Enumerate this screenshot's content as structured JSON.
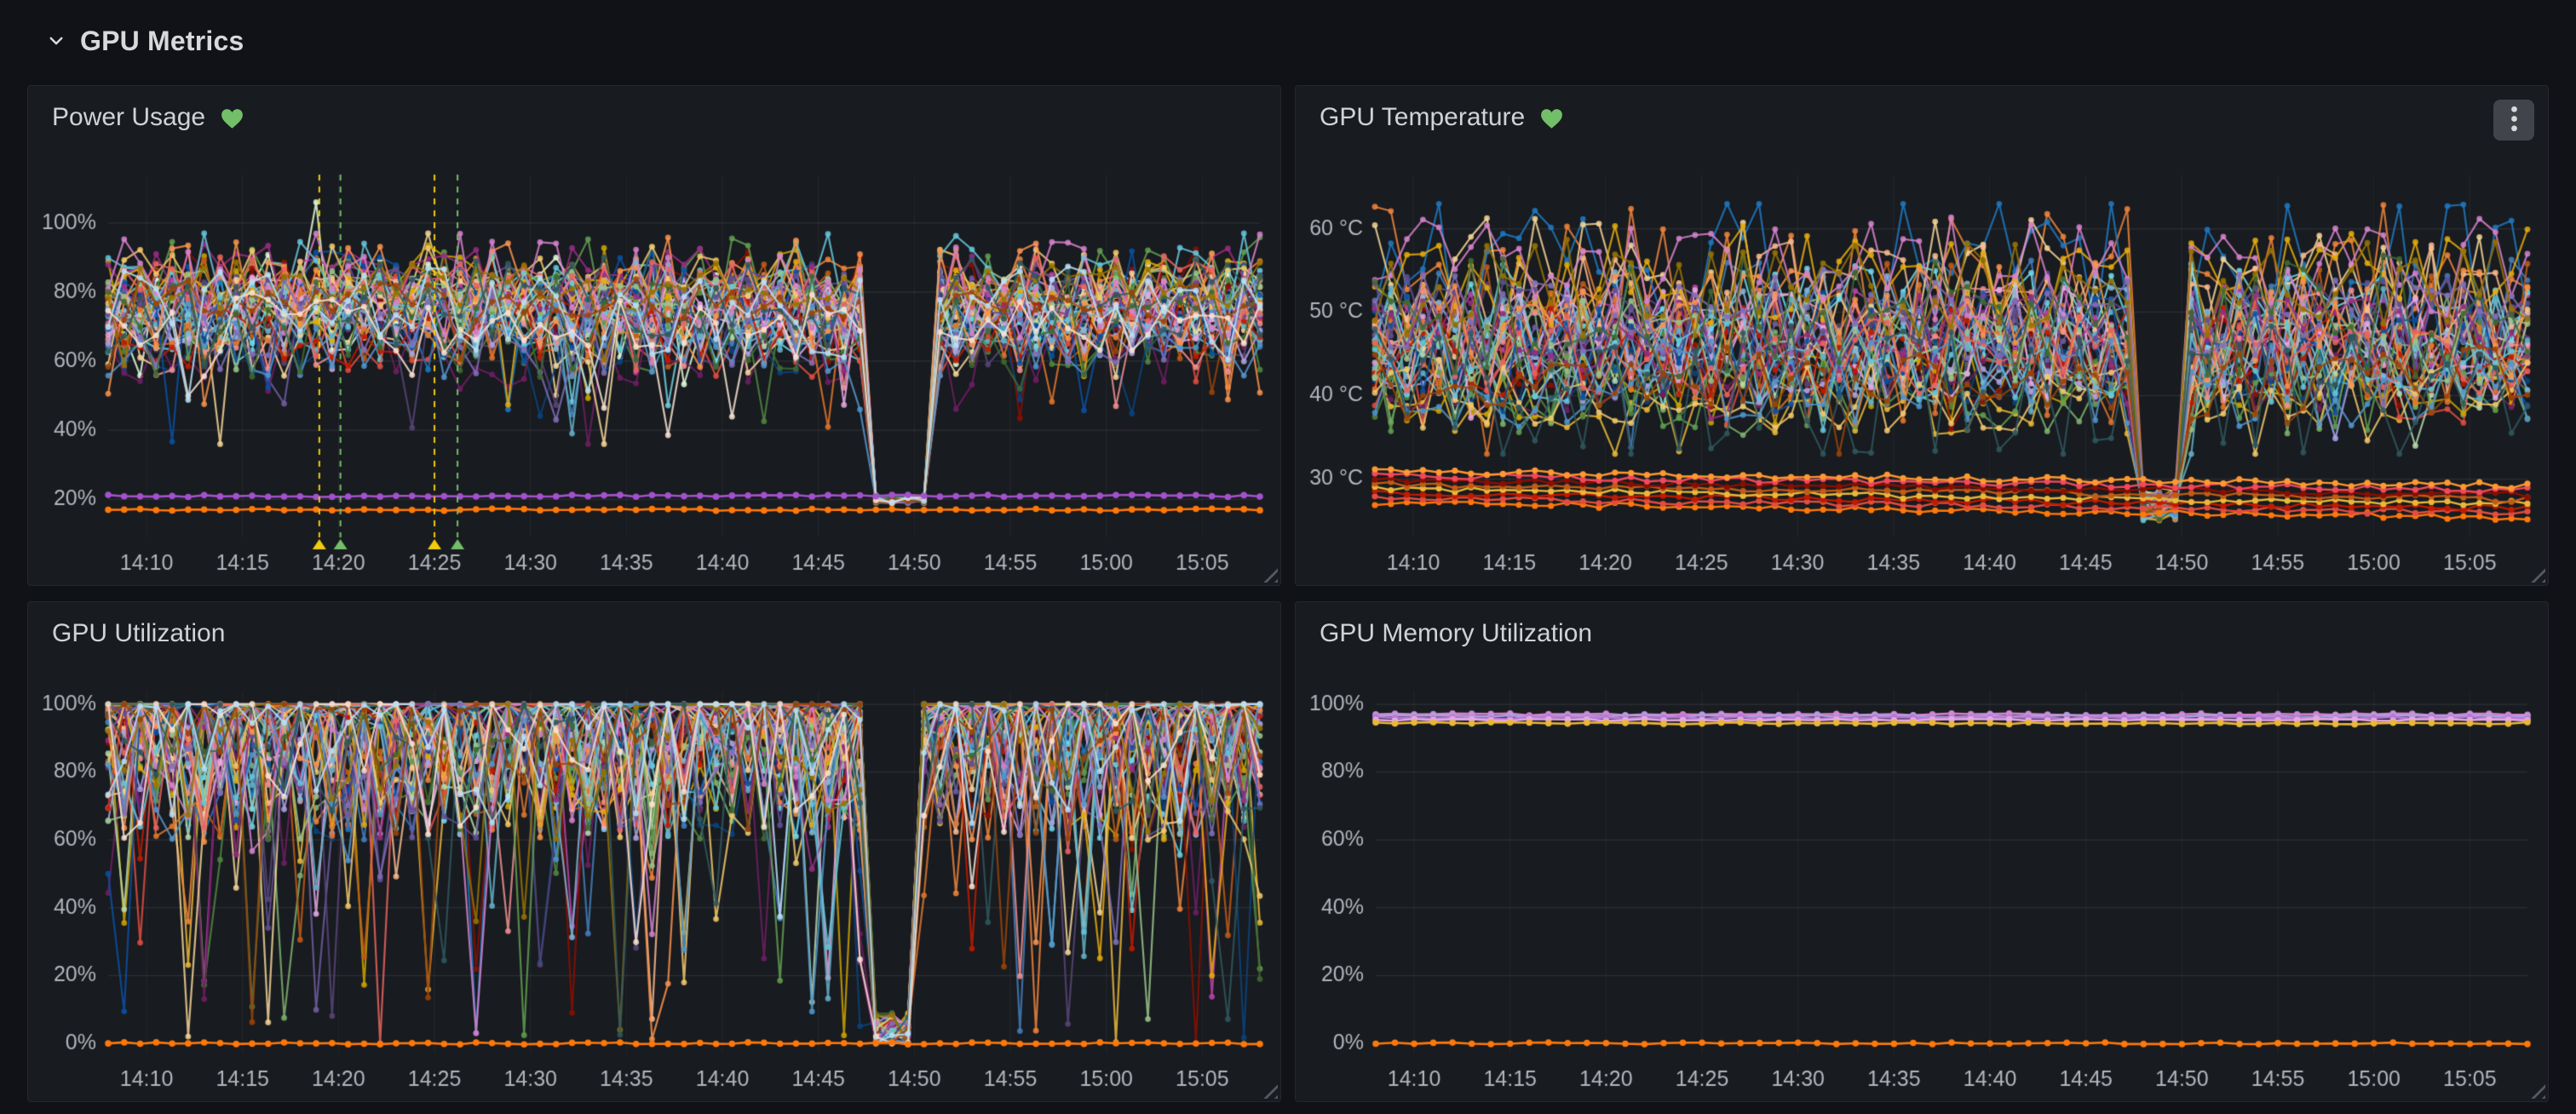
{
  "page": {
    "background": "#111217",
    "panel_background": "#181b1f",
    "panel_border": "#25272e"
  },
  "header": {
    "title": "GPU Metrics"
  },
  "panels": [
    {
      "title": "Power Usage",
      "health": "healthy",
      "menu": false
    },
    {
      "title": "GPU Temperature",
      "health": "healthy",
      "menu": true
    },
    {
      "title": "GPU Utilization",
      "health": null,
      "menu": false
    },
    {
      "title": "GPU Memory Utilization",
      "health": null,
      "menu": false
    }
  ],
  "colors": {
    "healthy_heart": "#73bf69",
    "axis_label": "#b3b6bc",
    "grid_line": "rgba(204,204,220,0.10)",
    "grid_line_vertical": "rgba(204,204,220,0.055)",
    "annotation_yellow": "#f2cc0c",
    "annotation_green": "#73bf69",
    "series_palette": [
      "#7EB26D",
      "#EAB839",
      "#6ED0E0",
      "#EF843C",
      "#E24D42",
      "#1F78C1",
      "#BA43A9",
      "#705DA0",
      "#508642",
      "#CCA300",
      "#447EBC",
      "#C15C17",
      "#890F02",
      "#0A437C",
      "#6D1F62",
      "#584477",
      "#B7DBAB",
      "#F4D598",
      "#70DBED",
      "#F9BA8F",
      "#F29191",
      "#82B5D8",
      "#E5A8E2",
      "#AEA2E0",
      "#629E51",
      "#E5AC0E",
      "#64B0C8",
      "#E0752D",
      "#BF1B00",
      "#0A50A1",
      "#962D82",
      "#614D93",
      "#9AC48A",
      "#F2C96D",
      "#65C5DB",
      "#F9934E",
      "#EA6460",
      "#5195CE",
      "#D683CE",
      "#806EB7",
      "#3F6833",
      "#967302",
      "#2F575E",
      "#99440A",
      "#F9E2D2",
      "#BADFF4"
    ]
  },
  "chart_data": [
    {
      "id": "power",
      "type": "line",
      "title": "Power Usage",
      "legend": "hidden",
      "xlabel": "",
      "ylabel": "",
      "x_domain_minutes": [
        0,
        60
      ],
      "x_start_time": "14:08",
      "points": 73,
      "x_ticks": [
        {
          "m": 2,
          "label": "14:10"
        },
        {
          "m": 7,
          "label": "14:15"
        },
        {
          "m": 12,
          "label": "14:20"
        },
        {
          "m": 17,
          "label": "14:25"
        },
        {
          "m": 22,
          "label": "14:30"
        },
        {
          "m": 27,
          "label": "14:35"
        },
        {
          "m": 32,
          "label": "14:40"
        },
        {
          "m": 37,
          "label": "14:45"
        },
        {
          "m": 42,
          "label": "14:50"
        },
        {
          "m": 47,
          "label": "14:55"
        },
        {
          "m": 52,
          "label": "15:00"
        },
        {
          "m": 57,
          "label": "15:05"
        }
      ],
      "y_ticks": [
        {
          "v": 20,
          "label": "20%"
        },
        {
          "v": 40,
          "label": "40%"
        },
        {
          "v": 60,
          "label": "60%"
        },
        {
          "v": 80,
          "label": "80%"
        },
        {
          "v": 100,
          "label": "100%"
        }
      ],
      "ylim": [
        9,
        114
      ],
      "gen": "band",
      "noisy": {
        "count": 46,
        "center_min": 66,
        "center_max": 84,
        "amp_min": 4,
        "amp_max": 11,
        "clamp": [
          36,
          97
        ],
        "drop_chance": 0.035,
        "drop_min": 12,
        "drop_max": 30
      },
      "dip": {
        "from": 39.2,
        "to": 42.6,
        "value": 20,
        "noise": 1.2
      },
      "spikes": [
        {
          "minute": 11,
          "value": 106,
          "series": 0,
          "color": "#e0f9d7"
        },
        {
          "minute": 17,
          "value": 97,
          "series": 1,
          "color": "#f4d598"
        }
      ],
      "flat_lines": [
        {
          "value": 21,
          "color": "#a352cc"
        },
        {
          "value": 17,
          "color": "#ff780a"
        }
      ],
      "annotations": {
        "vlines": [
          {
            "minute": 11,
            "color": "#f2cc0c"
          },
          {
            "minute": 12.1,
            "color": "#73bf69"
          },
          {
            "minute": 17,
            "color": "#f2cc0c"
          },
          {
            "minute": 18.2,
            "color": "#73bf69"
          }
        ]
      }
    },
    {
      "id": "temp",
      "type": "line",
      "title": "GPU Temperature",
      "legend": "hidden",
      "xlabel": "",
      "ylabel": "",
      "x_domain_minutes": [
        0,
        60
      ],
      "x_start_time": "14:08",
      "points": 73,
      "x_ticks": [
        {
          "m": 2,
          "label": "14:10"
        },
        {
          "m": 7,
          "label": "14:15"
        },
        {
          "m": 12,
          "label": "14:20"
        },
        {
          "m": 17,
          "label": "14:25"
        },
        {
          "m": 22,
          "label": "14:30"
        },
        {
          "m": 27,
          "label": "14:35"
        },
        {
          "m": 32,
          "label": "14:40"
        },
        {
          "m": 37,
          "label": "14:45"
        },
        {
          "m": 42,
          "label": "14:50"
        },
        {
          "m": 47,
          "label": "14:55"
        },
        {
          "m": 52,
          "label": "15:00"
        },
        {
          "m": 57,
          "label": "15:05"
        }
      ],
      "y_ticks": [
        {
          "v": 30,
          "label": "30 °C"
        },
        {
          "v": 40,
          "label": "40 °C"
        },
        {
          "v": 50,
          "label": "50 °C"
        },
        {
          "v": 60,
          "label": "60 °C"
        }
      ],
      "ylim": [
        23,
        66.5
      ],
      "gen": "band",
      "noisy": {
        "count": 44,
        "center_min": 40,
        "center_max": 56,
        "amp_min": 2.5,
        "amp_max": 6,
        "clamp": [
          33,
          63
        ],
        "drop_chance": 0.02,
        "drop_min": 4,
        "drop_max": 9
      },
      "dip": {
        "from": 39.2,
        "to": 42.4,
        "value": 27,
        "noise": 2
      },
      "bottom_group": {
        "colors": [
          "#ff780a",
          "#e24d42",
          "#bf1b00",
          "#eab839",
          "#c15c17",
          "#890f02",
          "#f2495c",
          "#ff9830"
        ],
        "base_min": 27.2,
        "base_max": 31,
        "drift": -1.8,
        "noise": 0.35
      }
    },
    {
      "id": "util",
      "type": "line",
      "title": "GPU Utilization",
      "legend": "hidden",
      "xlabel": "",
      "ylabel": "",
      "x_domain_minutes": [
        0,
        60
      ],
      "x_start_time": "14:08",
      "points": 73,
      "x_ticks": [
        {
          "m": 2,
          "label": "14:10"
        },
        {
          "m": 7,
          "label": "14:15"
        },
        {
          "m": 12,
          "label": "14:20"
        },
        {
          "m": 17,
          "label": "14:25"
        },
        {
          "m": 22,
          "label": "14:30"
        },
        {
          "m": 27,
          "label": "14:35"
        },
        {
          "m": 32,
          "label": "14:40"
        },
        {
          "m": 37,
          "label": "14:45"
        },
        {
          "m": 42,
          "label": "14:50"
        },
        {
          "m": 47,
          "label": "14:55"
        },
        {
          "m": 52,
          "label": "15:00"
        },
        {
          "m": 57,
          "label": "15:05"
        }
      ],
      "y_ticks": [
        {
          "v": 0,
          "label": "0%"
        },
        {
          "v": 20,
          "label": "20%"
        },
        {
          "v": 40,
          "label": "40%"
        },
        {
          "v": 60,
          "label": "60%"
        },
        {
          "v": 80,
          "label": "80%"
        },
        {
          "v": 100,
          "label": "100%"
        }
      ],
      "ylim": [
        -3,
        104
      ],
      "gen": "util",
      "noisy": {
        "count": 46,
        "spread": 40,
        "top_chance": 0.35,
        "deep_chance": 0.05,
        "deep_min": 25,
        "deep_max": 95,
        "zero_chance": 0.006,
        "clamp": [
          0,
          100
        ]
      },
      "dip": {
        "from": 39.9,
        "to": 41.7,
        "value": 3,
        "noise": 6,
        "floor": 0
      },
      "flat_lines": [
        {
          "value": 0,
          "color": "#ff780a"
        }
      ]
    },
    {
      "id": "mem",
      "type": "line",
      "title": "GPU Memory Utilization",
      "legend": "hidden",
      "xlabel": "",
      "ylabel": "",
      "x_domain_minutes": [
        0,
        60
      ],
      "x_start_time": "14:08",
      "points": 61,
      "x_ticks": [
        {
          "m": 2,
          "label": "14:10"
        },
        {
          "m": 7,
          "label": "14:15"
        },
        {
          "m": 12,
          "label": "14:20"
        },
        {
          "m": 17,
          "label": "14:25"
        },
        {
          "m": 22,
          "label": "14:30"
        },
        {
          "m": 27,
          "label": "14:35"
        },
        {
          "m": 32,
          "label": "14:40"
        },
        {
          "m": 37,
          "label": "14:45"
        },
        {
          "m": 42,
          "label": "14:50"
        },
        {
          "m": 47,
          "label": "14:55"
        },
        {
          "m": 52,
          "label": "15:00"
        },
        {
          "m": 57,
          "label": "15:05"
        }
      ],
      "y_ticks": [
        {
          "v": 0,
          "label": "0%"
        },
        {
          "v": 20,
          "label": "20%"
        },
        {
          "v": 40,
          "label": "40%"
        },
        {
          "v": 60,
          "label": "60%"
        },
        {
          "v": 80,
          "label": "80%"
        },
        {
          "v": 100,
          "label": "100%"
        }
      ],
      "ylim": [
        -3,
        104
      ],
      "gen": "flat-only",
      "flat_lines": [
        {
          "value": 97,
          "color": "#d683ce"
        },
        {
          "value": 96.5,
          "color": "#aea2e0"
        },
        {
          "value": 96,
          "color": "#b877d9"
        },
        {
          "value": 95.4,
          "color": "#e5a8e2"
        },
        {
          "value": 94.4,
          "color": "#eab839"
        },
        {
          "value": 0,
          "color": "#ff780a"
        }
      ]
    }
  ]
}
